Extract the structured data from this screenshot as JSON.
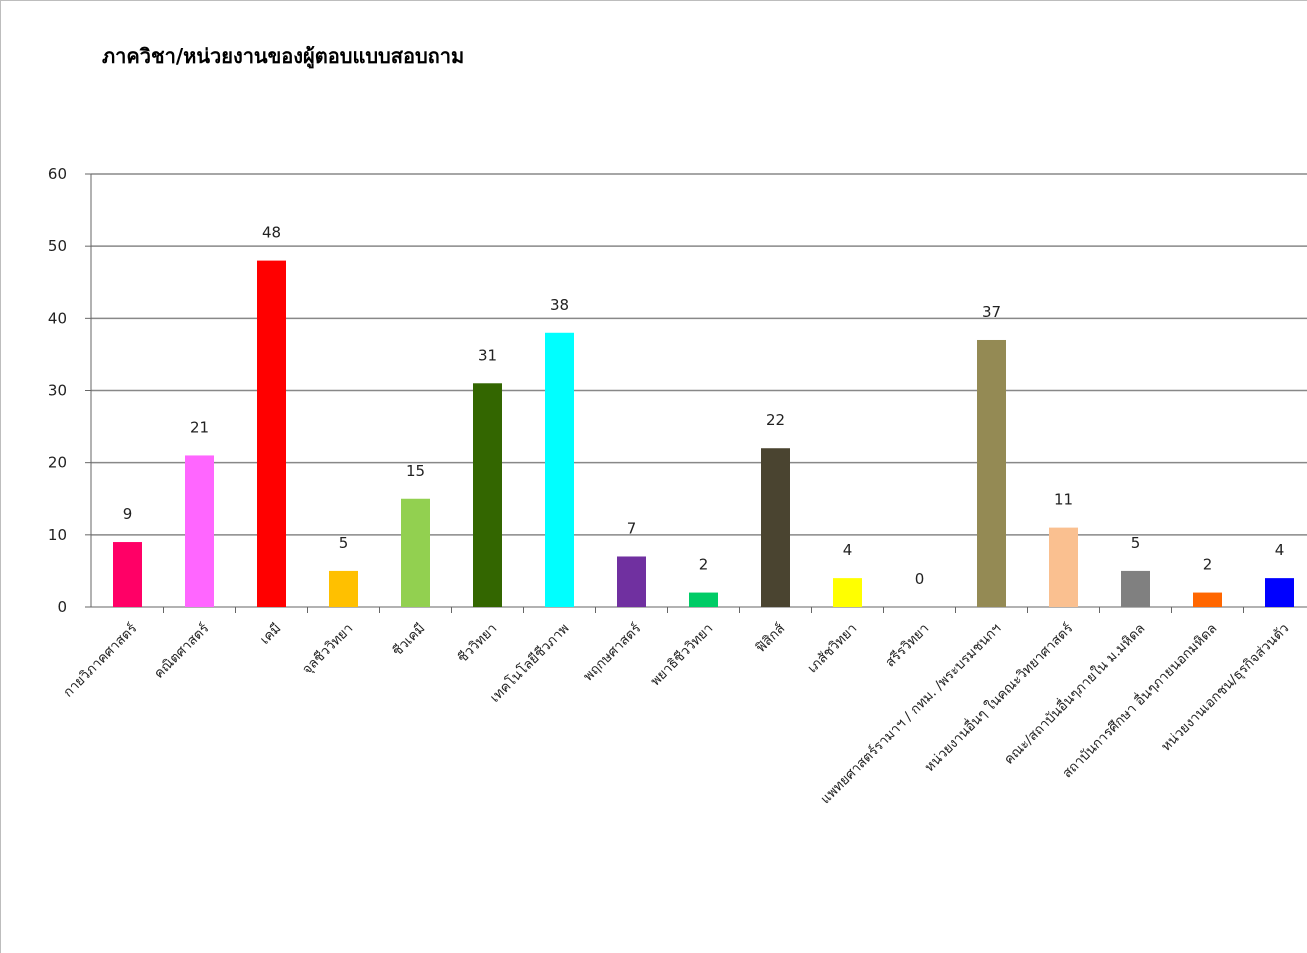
{
  "chart_data": {
    "type": "bar",
    "title": "ภาควิชา/หน่วยงานของผู้ตอบแบบสอบถาม",
    "xlabel": "",
    "ylabel": "",
    "ylim": [
      0,
      60
    ],
    "yticks": [
      0,
      10,
      20,
      30,
      40,
      50,
      60
    ],
    "grid": true,
    "legend": "none",
    "categories": [
      "กายวิภาคศาสตร์",
      "คณิตศาสตร์",
      "เคมี",
      "จุลชีววิทยา",
      "ชีวเคมี",
      "ชีววิทยา",
      "เทคโนโลยีชีวภาพ",
      "พฤกษศาสตร์",
      "พยาธิชีววิทยา",
      "ฟิสิกส์",
      "เภสัชวิทยา",
      "สรีรวิทยา",
      "แพทยศาสตร์รามาฯ / กทม. /พระบรมชนกฯ",
      "หน่วยงานอื่นๆ ในคณะวิทยาศาสตร์",
      "คณะ/สถาบันอื่นๆภายใน ม.มหิดล",
      "สถาบันการศึกษา อื่นๆภายนอกมหิดล",
      "หน่วยงานเอกชน/ธุรกิจส่วนตัว"
    ],
    "values": [
      9,
      21,
      48,
      5,
      15,
      31,
      38,
      7,
      2,
      22,
      4,
      0,
      37,
      11,
      5,
      2,
      4
    ],
    "colors": [
      "#FF0066",
      "#FF66FF",
      "#FF0000",
      "#FFC000",
      "#92D050",
      "#336600",
      "#00FFFF",
      "#7030A0",
      "#00CC66",
      "#4A4430",
      "#FFFF00",
      "#FFFFFF",
      "#948A54",
      "#FAC090",
      "#808080",
      "#FF6600",
      "#0000FF"
    ]
  }
}
